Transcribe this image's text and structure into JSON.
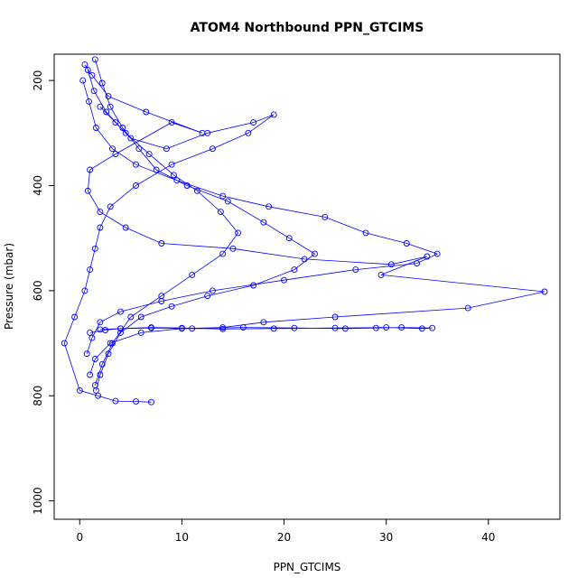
{
  "chart_data": {
    "type": "scatter",
    "title": "ATOM4 Northbound PPN_GTCIMS",
    "xlabel": "PPN_GTCIMS",
    "ylabel": "Pressure (mbar)",
    "xlim": [
      -2.5,
      47
    ],
    "ylim": [
      1035,
      150
    ],
    "y_reversed": true,
    "x_ticks": [
      0,
      10,
      20,
      30,
      40
    ],
    "x_tick_labels": [
      "0",
      "10",
      "20",
      "30",
      "40"
    ],
    "y_ticks": [
      200,
      400,
      600,
      800,
      1000
    ],
    "y_tick_labels": [
      "200",
      "400",
      "600",
      "800",
      "1000"
    ],
    "grid": false,
    "legend": "none",
    "series_color": "#0000ff",
    "marker": "open-circle",
    "connected": true,
    "series": [
      {
        "x": [
          0.5,
          1.2,
          2.8,
          6.5,
          12.0,
          9.0,
          3.5,
          1.0,
          0.8,
          2.0,
          4.5,
          8.0,
          15.0,
          22.0,
          30.5,
          34.0,
          29.5,
          45.5,
          38.0,
          25.0,
          18.0,
          14.0,
          10.0,
          6.0,
          3.0,
          1.5,
          1.0
        ],
        "y": [
          170,
          190,
          230,
          260,
          300,
          280,
          340,
          370,
          410,
          450,
          480,
          510,
          520,
          540,
          550,
          535,
          570,
          602,
          633,
          650,
          660,
          670,
          672,
          680,
          700,
          730,
          760
        ]
      },
      {
        "x": [
          0.3,
          0.9,
          1.6,
          3.2,
          5.5,
          9.5,
          14.0,
          18.5,
          24.0,
          28.0,
          32.0,
          35.0,
          33.0,
          27.0,
          20.0,
          13.0,
          8.0,
          4.0,
          2.0,
          1.2,
          0.7
        ],
        "y": [
          200,
          240,
          290,
          330,
          360,
          390,
          420,
          440,
          460,
          490,
          510,
          530,
          548,
          560,
          580,
          600,
          620,
          640,
          660,
          690,
          720
        ]
      },
      {
        "x": [
          1.0,
          2.5,
          4.0,
          7.0,
          11.0,
          16.0,
          21.0,
          26.0,
          29.0,
          31.5,
          34.5,
          33.5,
          30.0,
          25.0,
          19.0,
          14.0,
          10.0,
          7.0,
          4.0,
          2.0
        ],
        "y": [
          680,
          675,
          672,
          671,
          672,
          670,
          671,
          672,
          671,
          670,
          671,
          672,
          670,
          671,
          672,
          673,
          671,
          670,
          672,
          674
        ]
      },
      {
        "x": [
          2.0,
          3.5,
          5.0,
          8.5,
          12.5,
          17.0,
          19.0,
          16.5,
          13.0,
          9.0,
          5.5,
          3.0,
          2.0,
          1.5,
          1.0,
          0.5,
          -0.5,
          -1.5,
          0.0,
          1.8,
          3.5,
          5.5,
          7.0
        ],
        "y": [
          250,
          280,
          310,
          330,
          300,
          280,
          265,
          300,
          330,
          360,
          400,
          440,
          480,
          520,
          560,
          600,
          650,
          700,
          790,
          800,
          810,
          811,
          812
        ]
      },
      {
        "x": [
          1.5,
          2.2,
          3.0,
          4.2,
          5.8,
          7.5,
          10.5,
          14.5,
          18.0,
          20.5,
          23.0,
          21.0,
          17.0,
          12.5,
          9.0,
          6.0,
          4.0,
          2.8,
          2.0,
          1.6
        ],
        "y": [
          160,
          205,
          250,
          290,
          330,
          370,
          400,
          430,
          470,
          500,
          530,
          560,
          590,
          610,
          630,
          650,
          680,
          720,
          760,
          790
        ]
      },
      {
        "x": [
          0.8,
          1.4,
          2.6,
          4.5,
          6.8,
          9.2,
          11.5,
          13.8,
          15.5,
          14.0,
          11.0,
          8.0,
          5.0,
          3.2,
          2.2,
          1.5
        ],
        "y": [
          180,
          220,
          260,
          300,
          340,
          380,
          410,
          450,
          490,
          530,
          570,
          610,
          650,
          700,
          740,
          780
        ]
      }
    ]
  }
}
